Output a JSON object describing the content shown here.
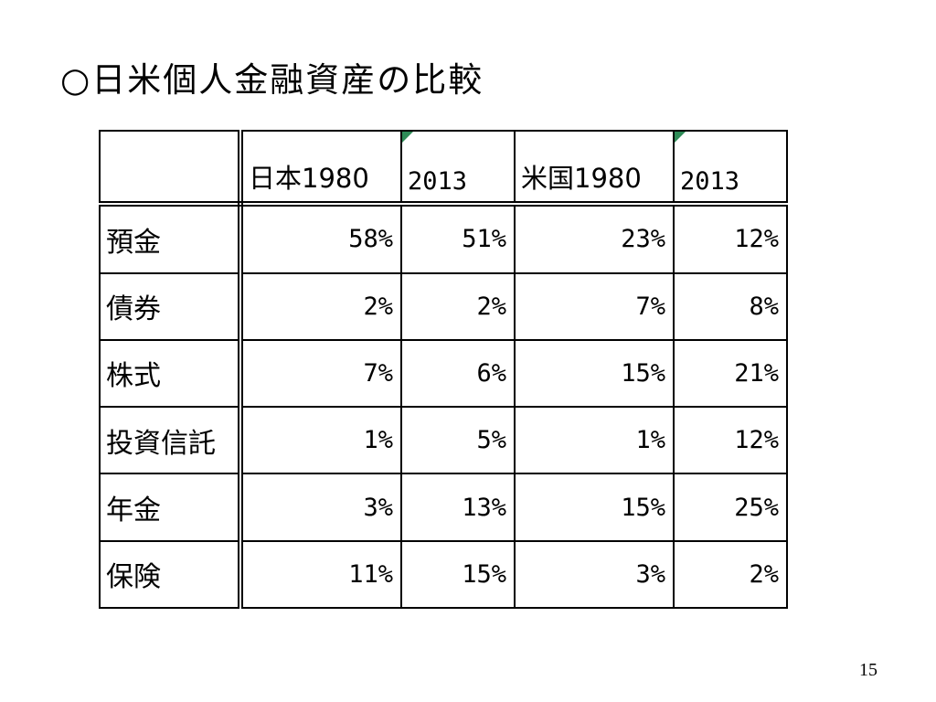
{
  "slide": {
    "title": "○日米個人金融資産の比較",
    "page_number": "15",
    "marker_color": "#2e8b57"
  },
  "table": {
    "headers": [
      "",
      "日本1980",
      "2013",
      "米国1980",
      "2013"
    ],
    "rows": [
      {
        "label": "預金",
        "values": [
          "58%",
          "51%",
          "23%",
          "12%"
        ]
      },
      {
        "label": "債券",
        "values": [
          "2%",
          "2%",
          "7%",
          "8%"
        ]
      },
      {
        "label": "株式",
        "values": [
          "7%",
          "6%",
          "15%",
          "21%"
        ]
      },
      {
        "label": "投資信託",
        "values": [
          "1%",
          "5%",
          "1%",
          "12%"
        ]
      },
      {
        "label": "年金",
        "values": [
          "3%",
          "13%",
          "15%",
          "25%"
        ]
      },
      {
        "label": "保険",
        "values": [
          "11%",
          "15%",
          "3%",
          "2%"
        ]
      }
    ]
  }
}
